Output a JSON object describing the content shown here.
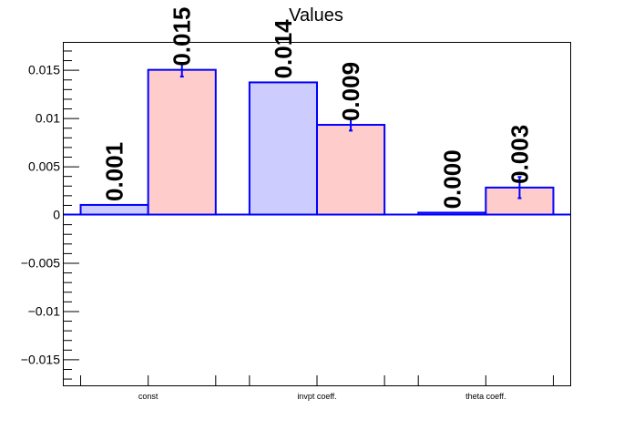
{
  "chart_data": {
    "type": "bar",
    "title": "Values",
    "categories": [
      "const",
      "invpt coeff.",
      "theta coeff."
    ],
    "series": [
      {
        "values": [
          0.001,
          0.0137,
          0.0002
        ],
        "labels": [
          "0.001",
          "0.014",
          "0.000"
        ],
        "errors": [
          0,
          0,
          0
        ],
        "fill": "#ccccff",
        "stroke": "#0000ff"
      },
      {
        "values": [
          0.015,
          0.0093,
          0.0028
        ],
        "labels": [
          "0.015",
          "0.009",
          "0.003"
        ],
        "errors": [
          0.0007,
          0.0006,
          0.0011
        ],
        "fill": "#ffcccc",
        "stroke": "#0000ff"
      }
    ],
    "ylim": [
      -0.0177,
      0.0178
    ],
    "yticks": [
      -0.015,
      -0.01,
      -0.005,
      0,
      0.005,
      0.01,
      0.015
    ],
    "ytick_labels": [
      "−0.015",
      "−0.01",
      "−0.005",
      "0",
      "0.005",
      "0.01",
      "0.015"
    ],
    "xlabel": "",
    "ylabel": "",
    "grid": false,
    "legend": "none"
  }
}
